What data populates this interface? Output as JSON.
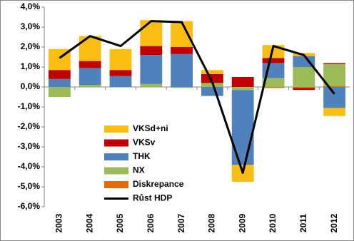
{
  "chart_data": {
    "type": "stacked-bar-line",
    "categories": [
      "2003",
      "2004",
      "2005",
      "2006",
      "2007",
      "2008",
      "2009",
      "2010",
      "2011",
      "2012"
    ],
    "series": [
      {
        "name": "VKSd+ni",
        "color": "#f9bd13",
        "values": [
          1.05,
          1.25,
          1.05,
          1.3,
          1.3,
          0.2,
          -0.85,
          0.65,
          0.15,
          -0.4
        ]
      },
      {
        "name": "VKSv",
        "color": "#c00000",
        "values": [
          0.45,
          0.35,
          0.3,
          0.45,
          0.35,
          0.45,
          0.5,
          0.25,
          -0.1,
          0.05
        ]
      },
      {
        "name": "THK",
        "color": "#4f81bd",
        "values": [
          0.4,
          0.85,
          0.55,
          1.45,
          1.65,
          -0.45,
          -3.75,
          0.75,
          0.55,
          -1.05
        ]
      },
      {
        "name": "NX",
        "color": "#9bbb59",
        "values": [
          -0.5,
          0.1,
          0.0,
          0.15,
          -0.05,
          0.2,
          -0.15,
          0.45,
          1.0,
          1.1
        ]
      },
      {
        "name": "Diskrepance",
        "color": "#e36c09",
        "values": [
          0.0,
          0.0,
          0.0,
          0.0,
          0.0,
          0.0,
          0.0,
          -0.05,
          -0.05,
          0.05
        ]
      }
    ],
    "line": {
      "name": "Růst HDP",
      "color": "#000000",
      "values": [
        1.45,
        2.55,
        2.05,
        3.3,
        3.25,
        0.25,
        -4.3,
        2.05,
        1.6,
        -0.35
      ]
    },
    "ylim": [
      -6,
      4
    ],
    "yticks": [
      {
        "value": 4,
        "label": "4,0%"
      },
      {
        "value": 3,
        "label": "3,0%"
      },
      {
        "value": 2,
        "label": "2,0%"
      },
      {
        "value": 1,
        "label": "1,0%"
      },
      {
        "value": 0,
        "label": "0,0%"
      },
      {
        "value": -1,
        "label": "-1,0%"
      },
      {
        "value": -2,
        "label": "-2,0%"
      },
      {
        "value": -3,
        "label": "-3,0%"
      },
      {
        "value": -4,
        "label": "-4,0%"
      },
      {
        "value": -5,
        "label": "-5,0%"
      },
      {
        "value": -6,
        "label": "-6,0%"
      }
    ],
    "grid": false
  }
}
